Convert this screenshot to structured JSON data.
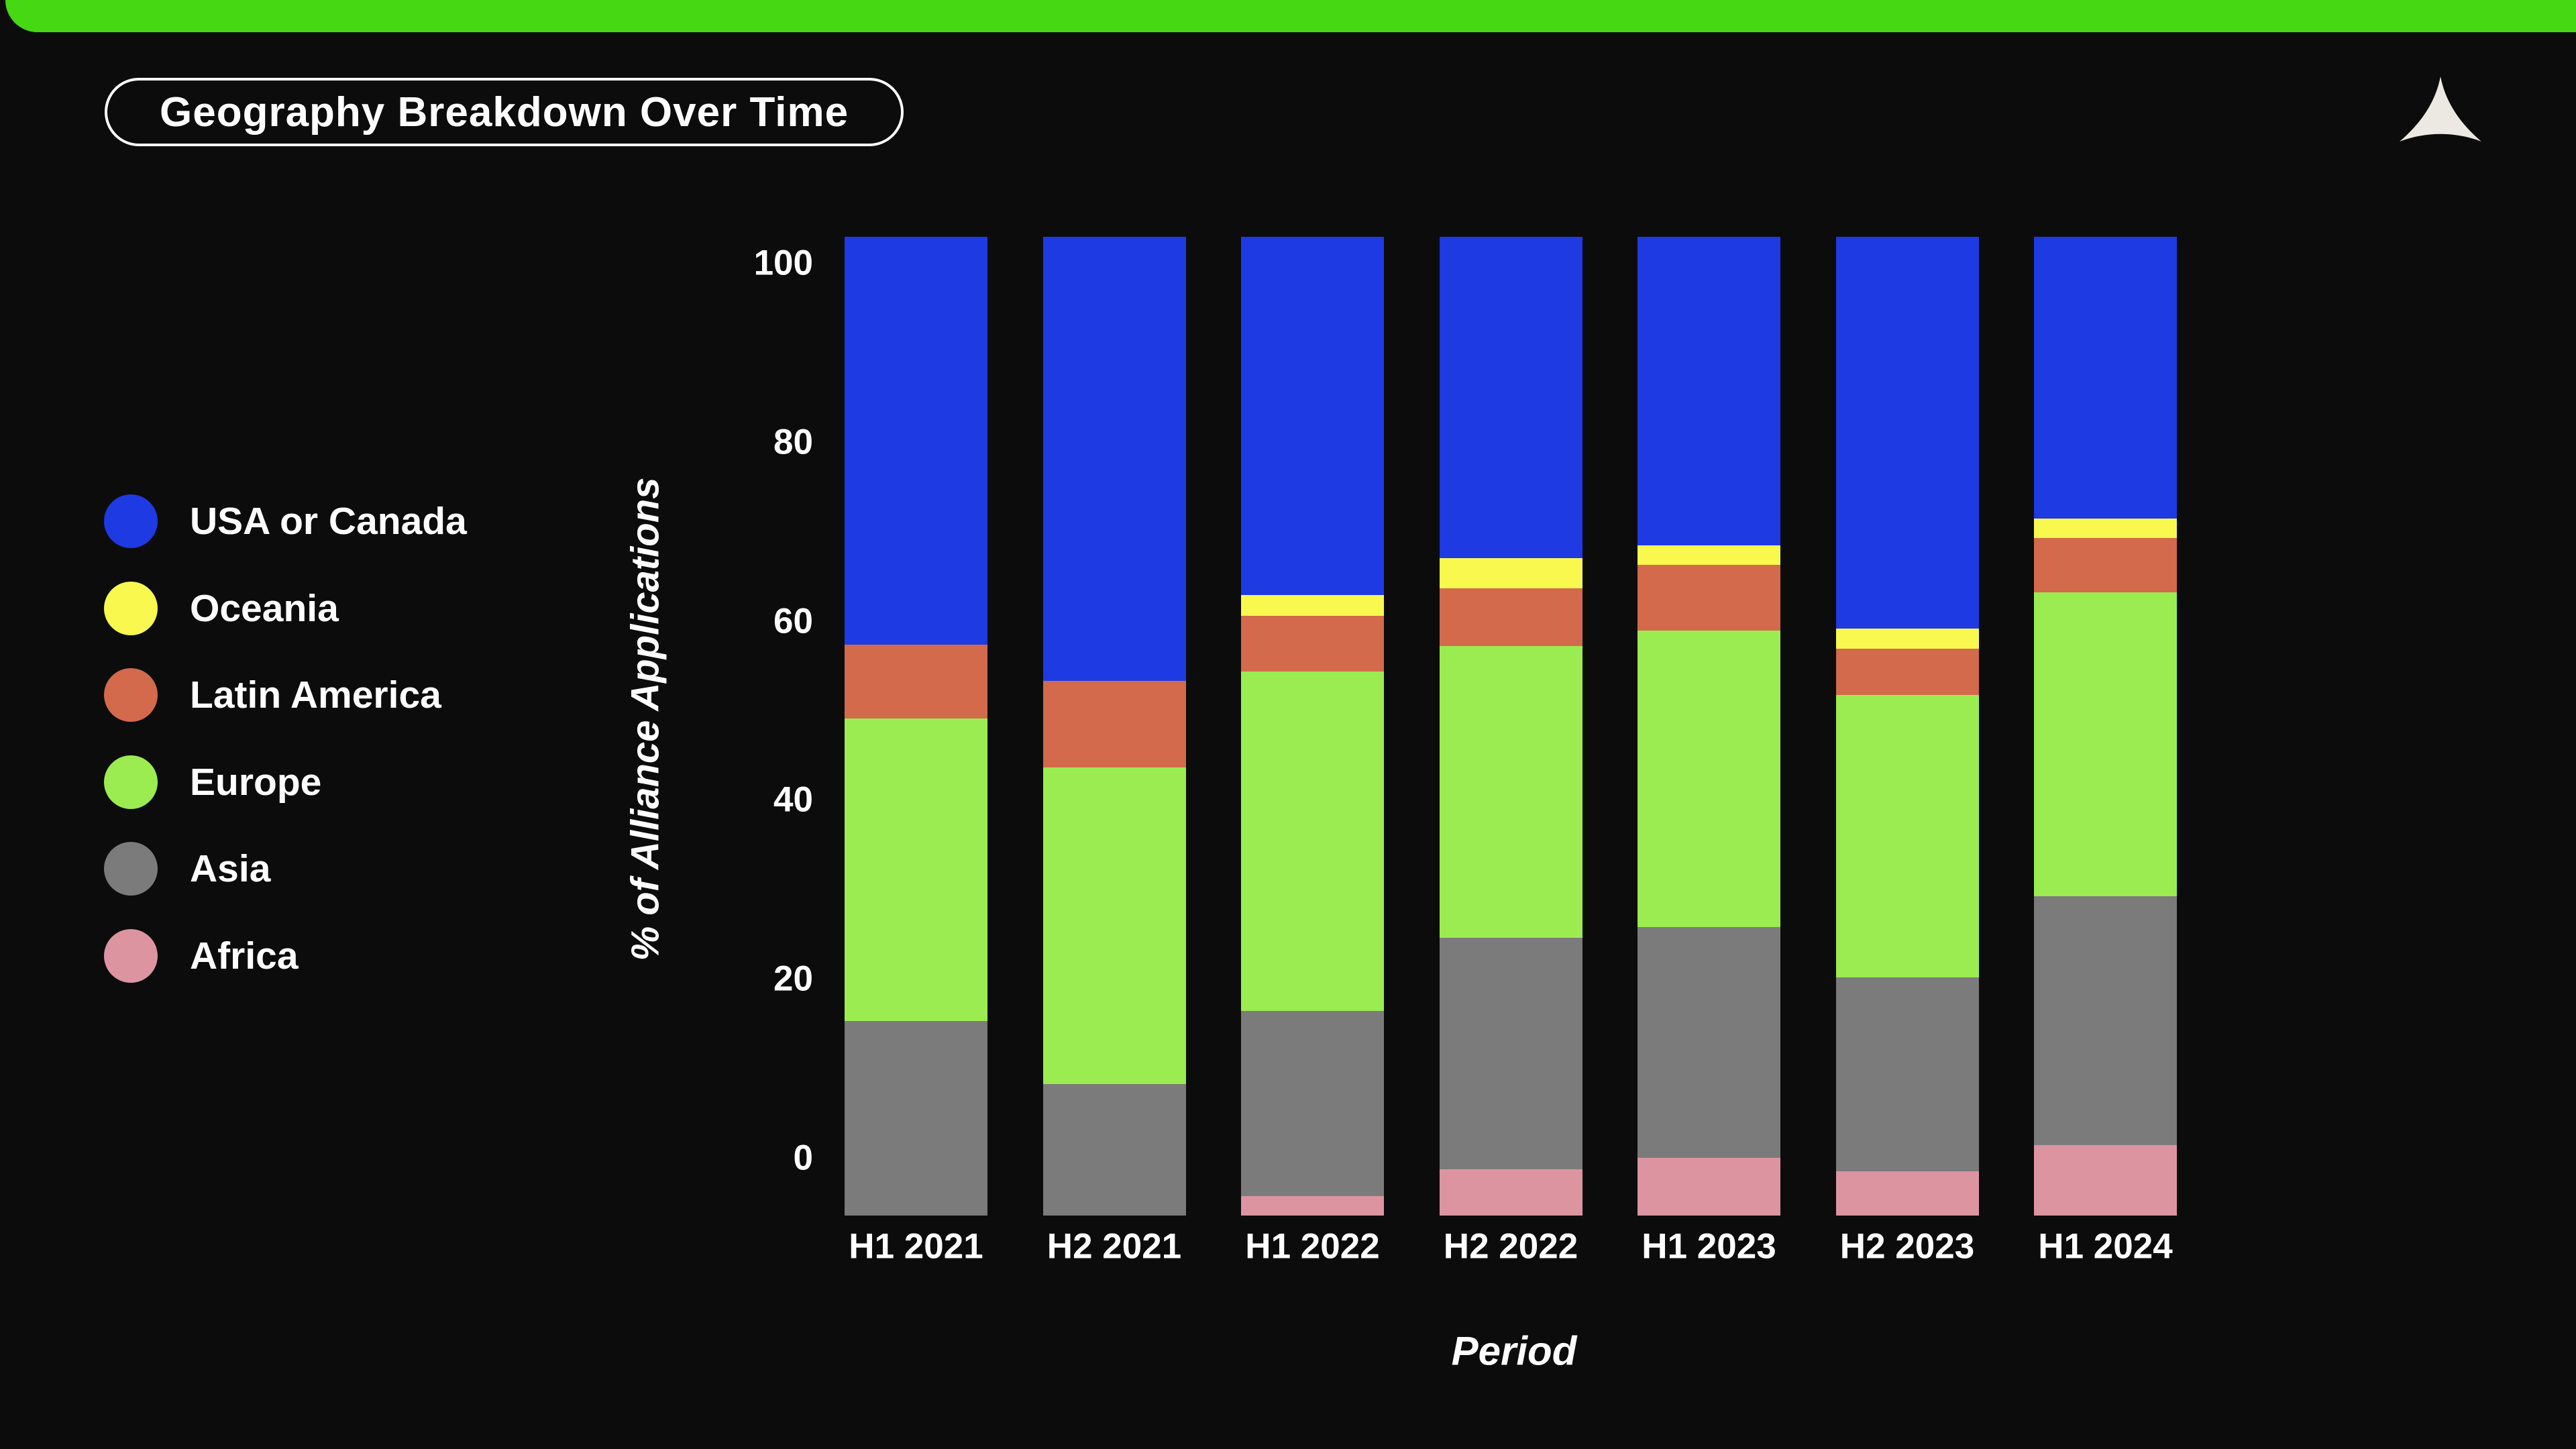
{
  "header": {
    "title": "Geography Breakdown Over Time"
  },
  "brand": {
    "logo_name": "curved-triangle-logo",
    "logo_color": "#ece9e2"
  },
  "colors": {
    "background": "#0c0c0c",
    "top_bar": "#45d813",
    "text": "#ffffff"
  },
  "axes": {
    "ylabel": "% of Alliance Applications",
    "xlabel": "Period"
  },
  "chart_data": {
    "type": "bar",
    "stacked": true,
    "percent_stacked": true,
    "title": "Geography Breakdown Over Time",
    "xlabel": "Period",
    "ylabel": "% of Alliance Applications",
    "categories": [
      "H1 2021",
      "H2 2021",
      "H1 2022",
      "H2 2022",
      "H1 2023",
      "H2 2023",
      "H1 2024"
    ],
    "yticks": [
      0,
      20,
      40,
      60,
      80,
      100
    ],
    "ylim": [
      0,
      100
    ],
    "grid": false,
    "legend_position": "left",
    "stack_order_bottom_to_top": [
      "Africa",
      "Asia",
      "Europe",
      "Latin America",
      "Oceania",
      "USA or Canada"
    ],
    "series": [
      {
        "name": "USA or Canada",
        "color": "#1e3ae2",
        "values": [
          41.7,
          45.4,
          36.6,
          32.8,
          31.5,
          40.0,
          28.8
        ]
      },
      {
        "name": "Oceania",
        "color": "#f9f84e",
        "values": [
          0,
          0,
          2.1,
          3.1,
          2.0,
          2.1,
          2.0
        ]
      },
      {
        "name": "Latin America",
        "color": "#d26a4b",
        "values": [
          7.5,
          8.8,
          5.7,
          5.9,
          6.7,
          4.7,
          5.5
        ]
      },
      {
        "name": "Europe",
        "color": "#9bec50",
        "values": [
          30.9,
          32.4,
          34.7,
          29.8,
          30.3,
          28.9,
          31.1
        ]
      },
      {
        "name": "Asia",
        "color": "#7b7b7b",
        "values": [
          19.9,
          13.4,
          18.9,
          23.7,
          23.6,
          19.8,
          25.4
        ]
      },
      {
        "name": "Africa",
        "color": "#dd94a1",
        "values": [
          0,
          0,
          2.0,
          4.7,
          5.9,
          4.5,
          7.2
        ]
      }
    ]
  }
}
